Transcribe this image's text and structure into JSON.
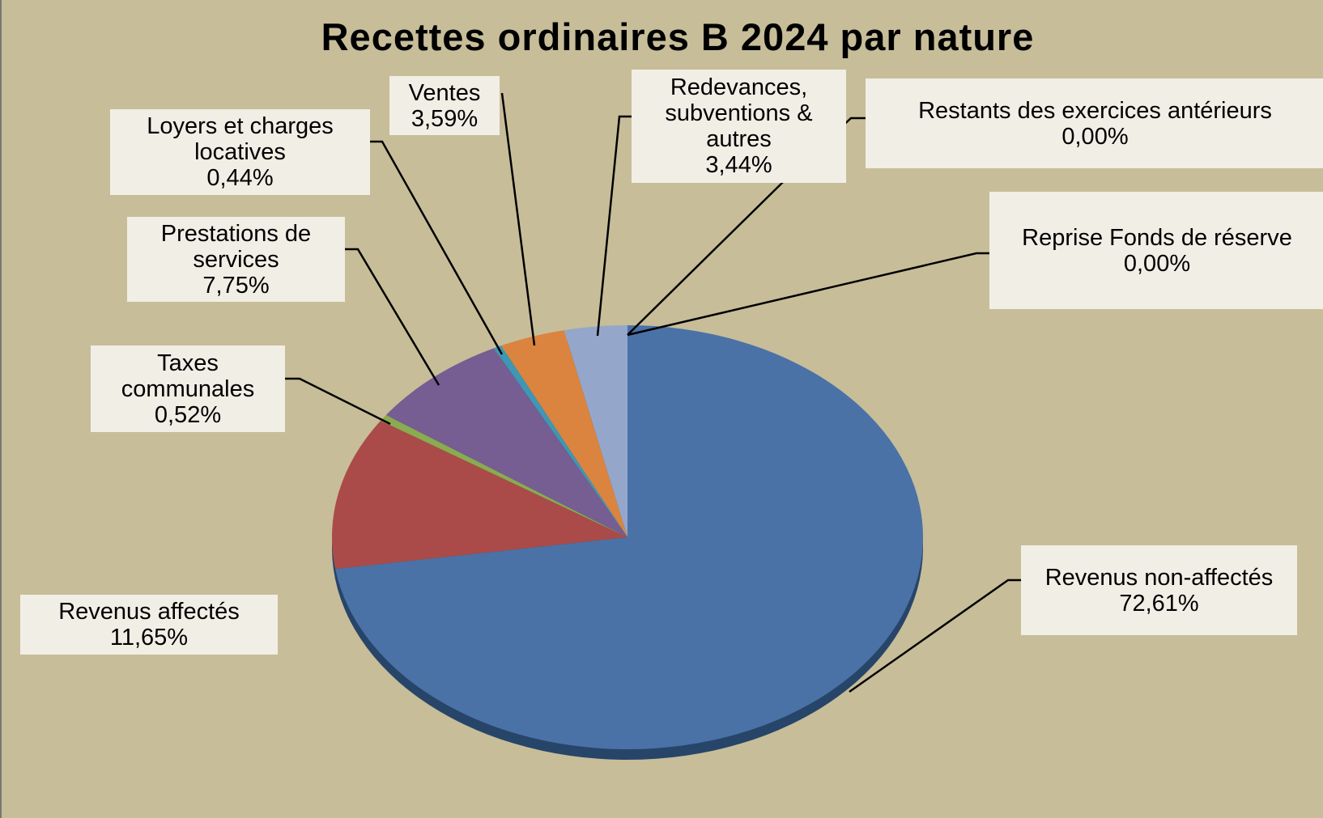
{
  "chart_data": {
    "type": "pie",
    "title": "Recettes ordinaires B 2024 par nature",
    "categories": [
      "Revenus non-affectés",
      "Revenus affectés",
      "Taxes communales",
      "Prestations de services",
      "Loyers et charges locatives",
      "Ventes",
      "Redevances, subventions & autres",
      "Reprise Fonds de réserve",
      "Restants des exercices antérieurs"
    ],
    "values": [
      72.61,
      11.65,
      0.52,
      7.75,
      0.44,
      3.59,
      3.44,
      0.0,
      0.0
    ],
    "value_labels": [
      "72,61%",
      "11,65%",
      "0,52%",
      "7,75%",
      "0,44%",
      "3,59%",
      "3,44%",
      "0,00%",
      "0,00%"
    ],
    "colors": [
      "#4a72a6",
      "#aa4b49",
      "#8aab4f",
      "#765d92",
      "#3d98b5",
      "#db843f",
      "#94a7cb",
      "#c0504d",
      "#4f81bd"
    ]
  }
}
